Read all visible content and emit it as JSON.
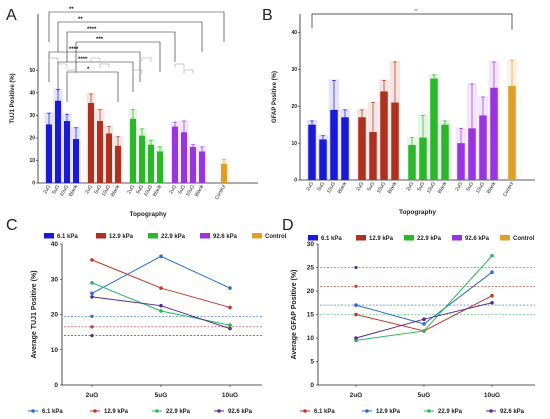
{
  "panels": {
    "A": "A",
    "B": "B",
    "C": "C",
    "D": "D"
  },
  "colors": {
    "s6": "#1a1ad6",
    "s12": "#b03020",
    "s22": "#2ab82a",
    "s92": "#9a33e0",
    "control": "#e0a028"
  },
  "chart_data": [
    {
      "id": "A",
      "type": "bar",
      "ylabel": "TUJ1 Positive (%)",
      "xlabel": "Topography",
      "ylim": [
        0,
        75
      ],
      "yticks": [
        0,
        10,
        20,
        30,
        40,
        50
      ],
      "groups": [
        {
          "name": "6.1 kPa",
          "color": "#1a1ad6",
          "categories": [
            "2uG",
            "5uG",
            "10uG",
            "Blank"
          ],
          "values": [
            26,
            36.5,
            27.5,
            19.5
          ],
          "errors": [
            5,
            5,
            3,
            5
          ]
        },
        {
          "name": "12.9 kPa",
          "color": "#b03020",
          "categories": [
            "2uG",
            "5uG",
            "10uG",
            "Blank"
          ],
          "values": [
            35.5,
            27.5,
            22,
            16.5
          ],
          "errors": [
            4,
            5,
            3,
            4
          ]
        },
        {
          "name": "22.9 kPa",
          "color": "#2ab82a",
          "categories": [
            "2uG",
            "5uG",
            "10uG",
            "Blank"
          ],
          "values": [
            28.5,
            21,
            17,
            14
          ],
          "errors": [
            4,
            3,
            2,
            2
          ]
        },
        {
          "name": "92.6 kPa",
          "color": "#9a33e0",
          "categories": [
            "2uG",
            "5uG",
            "10uG",
            "Blank"
          ],
          "values": [
            25,
            22.5,
            16,
            14
          ],
          "errors": [
            2,
            5,
            1,
            2
          ]
        },
        {
          "name": "Control",
          "color": "#e0a028",
          "categories": [
            "Control"
          ],
          "values": [
            8.5
          ],
          "errors": [
            2
          ]
        }
      ],
      "significance": [
        "**",
        "**",
        "****",
        "***",
        "****",
        "****",
        "*"
      ],
      "legend": [
        "6.1 kPa",
        "12.9 kPa",
        "22.9 kPa",
        "92.6 kPa",
        "Control"
      ]
    },
    {
      "id": "B",
      "type": "bar",
      "ylabel": "GFAP Positive (%)",
      "xlabel": "Topography",
      "ylim": [
        0,
        45
      ],
      "yticks": [
        0,
        10,
        20,
        30,
        40
      ],
      "yticklabels": [
        "0",
        "10",
        "20",
        "30",
        "40"
      ],
      "groups": [
        {
          "name": "6.1 kPa",
          "color": "#1a1ad6",
          "categories": [
            "2uG",
            "5uG",
            "10uG",
            "Blank"
          ],
          "values": [
            15,
            11,
            19,
            17
          ],
          "errors": [
            1,
            1,
            8,
            2
          ]
        },
        {
          "name": "12.9 kPa",
          "color": "#b03020",
          "categories": [
            "2uG",
            "5uG",
            "10uG",
            "Blank"
          ],
          "values": [
            17,
            13,
            24,
            21
          ],
          "errors": [
            2,
            8,
            3,
            11
          ]
        },
        {
          "name": "22.9 kPa",
          "color": "#2ab82a",
          "categories": [
            "2uG",
            "5uG",
            "10uG",
            "Blank"
          ],
          "values": [
            9.5,
            11.5,
            27.5,
            15
          ],
          "errors": [
            2,
            6,
            1,
            1
          ]
        },
        {
          "name": "92.6 kPa",
          "color": "#9a33e0",
          "categories": [
            "2uG",
            "5uG",
            "10uG",
            "Blank"
          ],
          "values": [
            10,
            14,
            17.5,
            25
          ],
          "errors": [
            4,
            12,
            5,
            7
          ]
        },
        {
          "name": "Control",
          "color": "#e0a028",
          "categories": [
            "Control"
          ],
          "values": [
            25.5
          ],
          "errors": [
            7
          ]
        }
      ],
      "significance": [
        "ns"
      ],
      "legend": [
        "6.1 kPa",
        "12.9 kPa",
        "22.9 kPa",
        "92.6 kPa",
        "Control"
      ]
    },
    {
      "id": "C",
      "type": "line",
      "ylabel": "Average TUJ1 Positive (%)",
      "x": [
        "2uG",
        "5uG",
        "10uG"
      ],
      "ylim": [
        0,
        40
      ],
      "yticks": [
        0,
        10,
        20,
        30,
        40
      ],
      "series": [
        {
          "name": "6.1 kPa",
          "color": "#2b6cd6",
          "values": [
            26,
            36.5,
            27.5
          ]
        },
        {
          "name": "12.9 kPa",
          "color": "#c0392b",
          "values": [
            35.5,
            27.5,
            22
          ]
        },
        {
          "name": "22.9 kPa",
          "color": "#2ab85a",
          "values": [
            29,
            21,
            17
          ]
        },
        {
          "name": "92.6 kPa",
          "color": "#5a2d8a",
          "values": [
            25,
            22.5,
            16
          ]
        }
      ],
      "reference_lines": [
        {
          "color": "#2b6cd6",
          "value": 19.5
        },
        {
          "color": "#c0392b",
          "value": 16.5
        },
        {
          "color": "#2ab85a",
          "value": 14
        },
        {
          "color": "#5a2d8a",
          "value": 14
        }
      ],
      "legend": [
        "6.1 kPa",
        "12.9 kPa",
        "22.9 kPa",
        "92.6 kPa"
      ]
    },
    {
      "id": "D",
      "type": "line",
      "ylabel": "Average GFAP Positive (%)",
      "x": [
        "2uG",
        "5uG",
        "10uG"
      ],
      "ylim": [
        0,
        30
      ],
      "yticks": [
        0,
        5,
        10,
        15,
        20,
        25,
        30
      ],
      "series": [
        {
          "name": "6.1 kPa",
          "color": "#c0392b",
          "values": [
            15,
            11.5,
            19
          ]
        },
        {
          "name": "12.9 kPa",
          "color": "#2b6cd6",
          "values": [
            17,
            13,
            24
          ]
        },
        {
          "name": "22.9 kPa",
          "color": "#2ab85a",
          "values": [
            9.5,
            11.5,
            27.5
          ]
        },
        {
          "name": "92.6 kPa",
          "color": "#5a2d8a",
          "values": [
            10,
            14,
            17.5
          ]
        }
      ],
      "reference_lines": [
        {
          "color": "#5a2d8a",
          "value": 25
        },
        {
          "color": "#c0392b",
          "value": 21
        },
        {
          "color": "#2b6cd6",
          "value": 17
        },
        {
          "color": "#2ab85a",
          "value": 15
        }
      ],
      "legend": [
        "6.1 kPa",
        "12.9 kPa",
        "22.9 kPa",
        "92.6 kPa"
      ]
    }
  ]
}
